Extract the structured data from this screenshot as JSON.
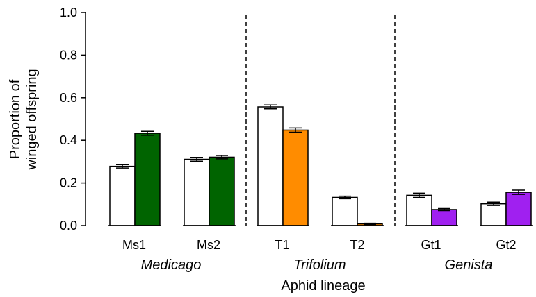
{
  "chart_data": {
    "type": "bar",
    "xlabel": "Aphid lineage",
    "ylabel_lines": [
      "Proportion of",
      "winged offspring"
    ],
    "ylim": [
      0,
      1.0
    ],
    "yticks": [
      "0.0",
      "0.2",
      "0.4",
      "0.6",
      "0.8",
      "1.0"
    ],
    "ytick_values": [
      0,
      0.2,
      0.4,
      0.6,
      0.8,
      1.0
    ],
    "grid": false,
    "categories": [
      "Ms1",
      "Ms2",
      "T1",
      "T2",
      "Gt1",
      "Gt2"
    ],
    "groups": [
      {
        "label": "Medicago",
        "categories": [
          "Ms1",
          "Ms2"
        ]
      },
      {
        "label": "Trifolium",
        "categories": [
          "T1",
          "T2"
        ]
      },
      {
        "label": "Genista",
        "categories": [
          "Gt1",
          "Gt2"
        ]
      }
    ],
    "series": [
      {
        "color": "#ffffff",
        "values": [
          0.278,
          0.311,
          0.557,
          0.132,
          0.142,
          0.102
        ],
        "errors": [
          0.008,
          0.009,
          0.009,
          0.006,
          0.01,
          0.008
        ]
      },
      {
        "colors": [
          "#006400",
          "#006400",
          "#ff8c00",
          "#ff8c00",
          "#a020f0",
          "#a020f0"
        ],
        "values": [
          0.433,
          0.321,
          0.448,
          0.008,
          0.075,
          0.156
        ],
        "errors": [
          0.009,
          0.008,
          0.01,
          0.003,
          0.005,
          0.01
        ]
      }
    ]
  }
}
